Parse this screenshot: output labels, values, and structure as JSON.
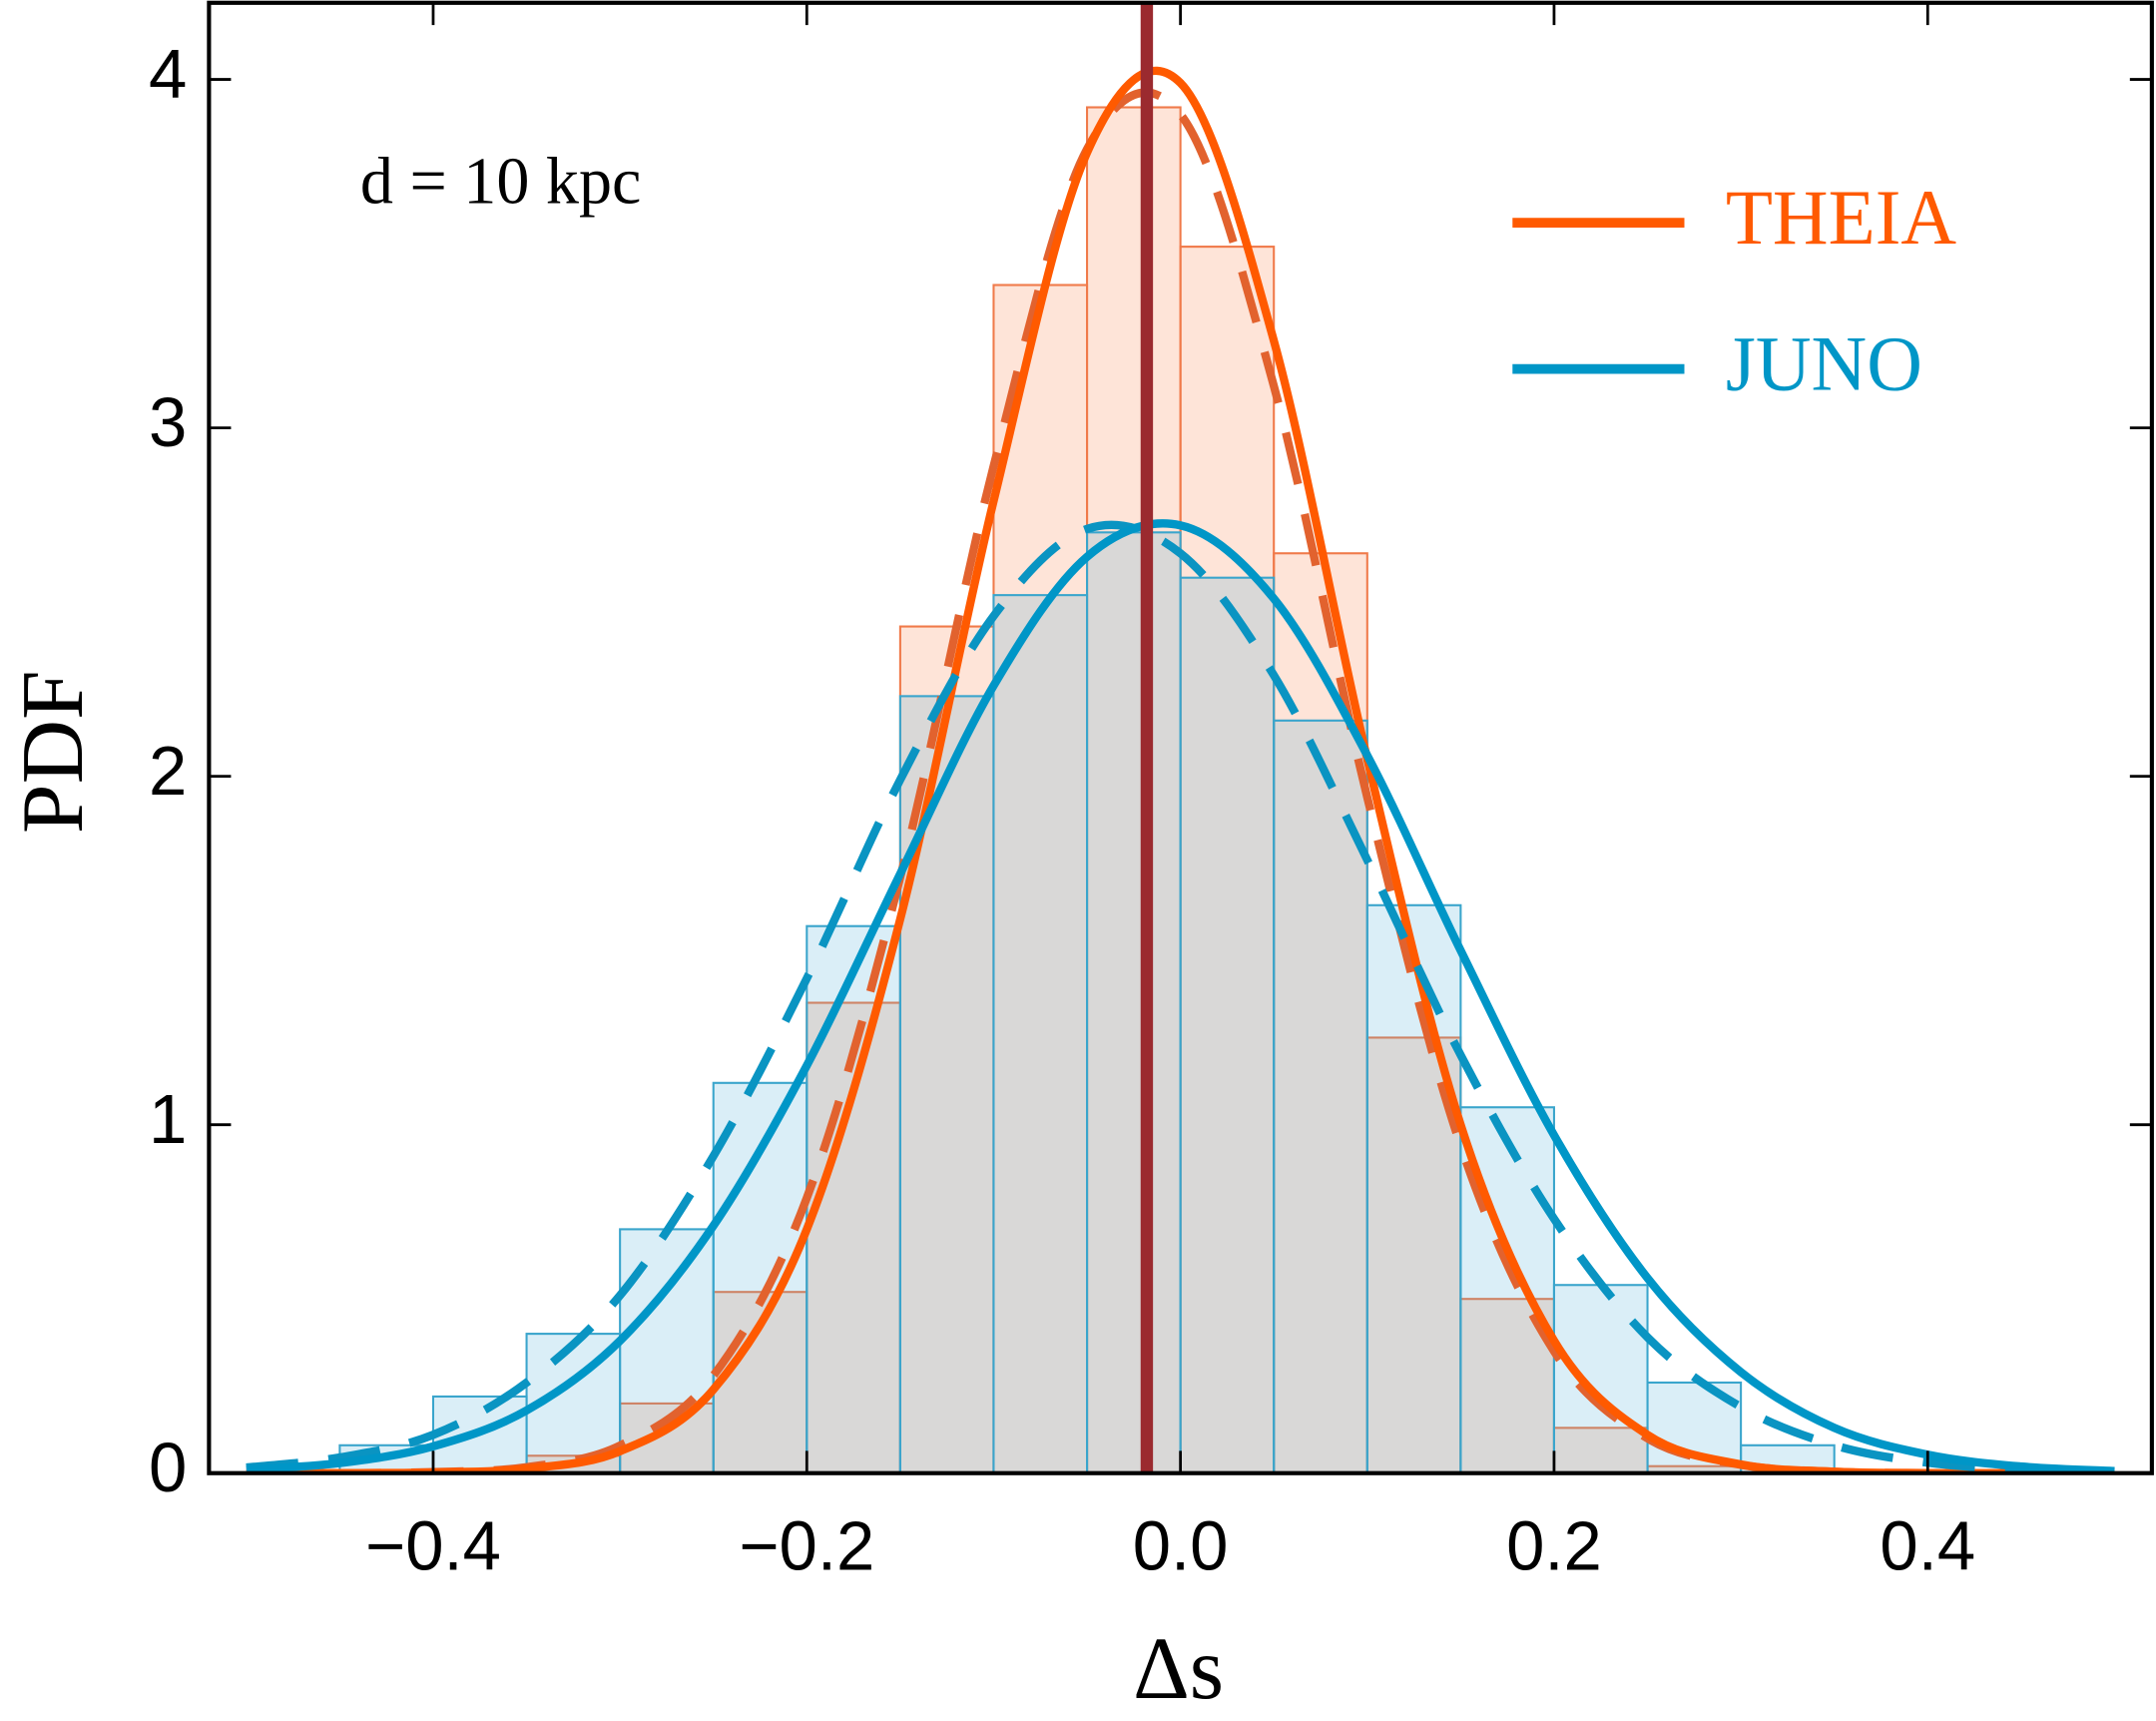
{
  "chart_data": {
    "type": "histogram",
    "xlabel": "Δs",
    "ylabel": "PDF",
    "annotation": "d = 10 kpc",
    "xlim": [
      -0.52,
      0.52
    ],
    "ylim": [
      0,
      4.22
    ],
    "xticks": [
      {
        "value": -0.4,
        "label": "−0.4"
      },
      {
        "value": -0.2,
        "label": "−0.2"
      },
      {
        "value": 0,
        "label": "0.0"
      },
      {
        "value": 0.2,
        "label": "0.2"
      },
      {
        "value": 0.4,
        "label": "0.4"
      }
    ],
    "yticks": [
      0,
      1,
      2,
      3,
      4
    ],
    "legend": "upper right",
    "bins": [
      -0.45,
      -0.4,
      -0.35,
      -0.3,
      -0.25,
      -0.2,
      -0.15,
      -0.1,
      -0.05,
      0,
      0.05,
      0.1,
      0.15,
      0.2,
      0.25,
      0.3,
      0.35
    ],
    "curve_x": [
      -0.5,
      -0.45,
      -0.4,
      -0.35,
      -0.3,
      -0.25,
      -0.2,
      -0.15,
      -0.1,
      -0.05,
      0,
      0.05,
      0.1,
      0.15,
      0.2,
      0.25,
      0.3,
      0.35,
      0.4,
      0.45,
      0.5
    ],
    "series": [
      {
        "name": "THEIA",
        "color": "#ff5a00",
        "dashed_color": "#e2622e",
        "fill": "rgba(250,120,60,0.2)",
        "edge": "#f07a4a",
        "values": [
          0,
          0,
          0.05,
          0.2,
          0.52,
          1.35,
          2.43,
          3.41,
          3.92,
          3.52,
          2.64,
          1.25,
          0.5,
          0.13,
          0.02,
          0
        ],
        "curve": [
          0,
          0,
          0.002,
          0.013,
          0.063,
          0.24,
          0.7,
          1.59,
          2.79,
          3.79,
          3.99,
          3.25,
          2.05,
          1.0,
          0.38,
          0.11,
          0.025,
          0.004,
          0,
          0,
          0
        ],
        "dashed_curve": [
          0,
          0,
          0.003,
          0.017,
          0.079,
          0.28,
          0.79,
          1.71,
          2.89,
          3.8,
          3.9,
          3.12,
          1.94,
          0.94,
          0.35,
          0.1,
          0.024,
          0.004,
          0,
          0,
          0
        ]
      },
      {
        "name": "JUNO",
        "color": "#0096c7",
        "dashed_color": "#0a94c2",
        "fill": "rgba(70,170,215,0.2)",
        "edge": "#3aa5cc",
        "values": [
          0.08,
          0.22,
          0.4,
          0.7,
          1.12,
          1.57,
          2.23,
          2.52,
          2.7,
          2.57,
          2.16,
          1.63,
          1.05,
          0.54,
          0.26,
          0.08
        ],
        "curve": [
          0.01,
          0.029,
          0.077,
          0.18,
          0.38,
          0.71,
          1.17,
          1.72,
          2.26,
          2.63,
          2.72,
          2.51,
          2.06,
          1.5,
          0.97,
          0.56,
          0.29,
          0.13,
          0.053,
          0.019,
          0.006
        ],
        "dashed_curve": [
          0.016,
          0.045,
          0.11,
          0.26,
          0.51,
          0.91,
          1.42,
          1.99,
          2.46,
          2.71,
          2.64,
          2.29,
          1.76,
          1.2,
          0.73,
          0.39,
          0.19,
          0.08,
          0.03,
          0.01,
          0
        ]
      }
    ],
    "reference_line": {
      "x": -0.018,
      "color": "#9b2a2f"
    }
  }
}
